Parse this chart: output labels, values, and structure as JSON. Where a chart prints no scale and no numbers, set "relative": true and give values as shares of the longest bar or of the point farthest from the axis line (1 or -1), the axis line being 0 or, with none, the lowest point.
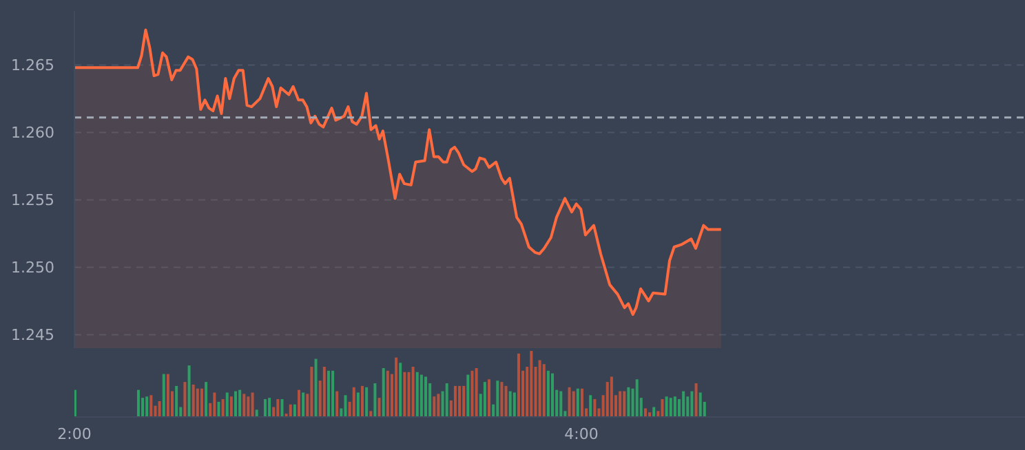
{
  "chart_data": [
    {
      "type": "area",
      "color": "#ff6b3f",
      "tick_labels": "y",
      "grid": "y",
      "xlim": [
        2,
        5.75
      ],
      "ylim": [
        1.244,
        1.269
      ],
      "yticks": [
        {
          "value": 1.245,
          "label": "1.245"
        },
        {
          "value": 1.25,
          "label": "1.250"
        },
        {
          "value": 1.255,
          "label": "1.255"
        },
        {
          "value": 1.26,
          "label": "1.260"
        },
        {
          "value": 1.265,
          "label": "1.265"
        }
      ],
      "ref_lines": [
        {
          "axis": "y",
          "value": 1.2611,
          "color": "#a3abb7",
          "line_style": "dashed"
        }
      ],
      "x": [
        2,
        2.25,
        2.265,
        2.281,
        2.297,
        2.314,
        2.33,
        2.348,
        2.363,
        2.384,
        2.401,
        2.417,
        2.449,
        2.466,
        2.482,
        2.498,
        2.515,
        2.531,
        2.547,
        2.564,
        2.58,
        2.596,
        2.612,
        2.63,
        2.648,
        2.665,
        2.681,
        2.699,
        2.732,
        2.765,
        2.781,
        2.797,
        2.814,
        2.846,
        2.863,
        2.884,
        2.901,
        2.917,
        2.933,
        2.949,
        2.966,
        2.982,
        3.015,
        3.031,
        3.064,
        3.08,
        3.096,
        3.113,
        3.134,
        3.152,
        3.17,
        3.189,
        3.203,
        3.217,
        3.238,
        3.265,
        3.283,
        3.301,
        3.328,
        3.346,
        3.382,
        3.4,
        3.418,
        3.436,
        3.455,
        3.469,
        3.485,
        3.5,
        3.515,
        3.536,
        3.569,
        3.583,
        3.599,
        3.618,
        3.636,
        3.663,
        3.685,
        3.699,
        3.717,
        3.745,
        3.763,
        3.793,
        3.817,
        3.835,
        3.853,
        3.88,
        3.902,
        3.935,
        3.962,
        3.98,
        3.998,
        4.016,
        4.049,
        4.076,
        4.112,
        4.143,
        4.17,
        4.185,
        4.203,
        4.216,
        4.234,
        4.265,
        4.283,
        4.33,
        4.348,
        4.366,
        4.397,
        4.433,
        4.451,
        4.482,
        4.5,
        4.551
      ],
      "values": [
        1.2648,
        1.2648,
        1.2657,
        1.2676,
        1.2663,
        1.2642,
        1.2643,
        1.2659,
        1.2656,
        1.2639,
        1.2646,
        1.2646,
        1.2656,
        1.2654,
        1.2647,
        1.2617,
        1.2624,
        1.2618,
        1.2616,
        1.2627,
        1.2614,
        1.264,
        1.2625,
        1.264,
        1.2646,
        1.2646,
        1.262,
        1.2619,
        1.2625,
        1.264,
        1.2634,
        1.2619,
        1.2633,
        1.2628,
        1.2634,
        1.2624,
        1.2624,
        1.2619,
        1.2607,
        1.2612,
        1.2606,
        1.2604,
        1.2618,
        1.2609,
        1.2612,
        1.2619,
        1.2608,
        1.2606,
        1.2612,
        1.2629,
        1.2602,
        1.2605,
        1.2595,
        1.2601,
        1.258,
        1.2551,
        1.2569,
        1.2562,
        1.2561,
        1.2578,
        1.2579,
        1.2602,
        1.2582,
        1.2582,
        1.2578,
        1.2578,
        1.2587,
        1.2589,
        1.2585,
        1.2576,
        1.2571,
        1.2573,
        1.2581,
        1.258,
        1.2574,
        1.2578,
        1.2566,
        1.2562,
        1.2566,
        1.2537,
        1.2532,
        1.2515,
        1.2511,
        1.251,
        1.2514,
        1.2522,
        1.2537,
        1.2551,
        1.2541,
        1.2547,
        1.2543,
        1.2524,
        1.2531,
        1.251,
        1.2487,
        1.248,
        1.247,
        1.2473,
        1.2465,
        1.247,
        1.2484,
        1.2475,
        1.2481,
        1.248,
        1.2505,
        1.2515,
        1.2517,
        1.2521,
        1.2514,
        1.2531,
        1.2528,
        1.2528
      ]
    },
    {
      "type": "bar",
      "relative": true,
      "tick_labels": "x",
      "xlim": [
        2,
        5.75
      ],
      "xticks": [
        {
          "value": 2,
          "label": "2:00"
        },
        {
          "value": 4,
          "label": "4:00"
        }
      ],
      "x": [
        2,
        2.25,
        2.2667,
        2.2833,
        2.3,
        2.3167,
        2.3333,
        2.35,
        2.3667,
        2.3833,
        2.4,
        2.4167,
        2.4333,
        2.45,
        2.4667,
        2.4833,
        2.5,
        2.5167,
        2.5333,
        2.55,
        2.5667,
        2.5833,
        2.6,
        2.6167,
        2.6333,
        2.65,
        2.6667,
        2.6833,
        2.7,
        2.7167,
        2.75,
        2.7667,
        2.7833,
        2.8,
        2.8167,
        2.8333,
        2.85,
        2.8667,
        2.8833,
        2.9,
        2.9167,
        2.9333,
        2.95,
        2.9667,
        2.9833,
        3,
        3.0167,
        3.0333,
        3.05,
        3.0667,
        3.0833,
        3.1,
        3.1167,
        3.1333,
        3.15,
        3.1667,
        3.1833,
        3.2,
        3.2167,
        3.2333,
        3.25,
        3.2667,
        3.2833,
        3.3,
        3.3167,
        3.3333,
        3.35,
        3.3667,
        3.3833,
        3.4,
        3.4167,
        3.4333,
        3.45,
        3.4667,
        3.4833,
        3.5,
        3.5167,
        3.5333,
        3.55,
        3.5667,
        3.5833,
        3.6,
        3.6167,
        3.6333,
        3.65,
        3.6667,
        3.6833,
        3.7,
        3.7167,
        3.7333,
        3.75,
        3.7667,
        3.7833,
        3.8,
        3.8167,
        3.8333,
        3.85,
        3.8667,
        3.8833,
        3.9,
        3.9167,
        3.9333,
        3.95,
        3.9667,
        3.9833,
        4,
        4.0167,
        4.0333,
        4.05,
        4.0667,
        4.0833,
        4.1,
        4.1167,
        4.1333,
        4.15,
        4.1667,
        4.1833,
        4.2,
        4.2167,
        4.2333,
        4.25,
        4.2667,
        4.2833,
        4.3,
        4.3167,
        4.3333,
        4.35,
        4.3667,
        4.3833,
        4.4,
        4.4167,
        4.4333,
        4.45,
        4.4667,
        4.4833
      ],
      "values": [
        0.41,
        0.41,
        0.29,
        0.31,
        0.33,
        0.17,
        0.24,
        0.65,
        0.65,
        0.39,
        0.47,
        0.15,
        0.53,
        0.78,
        0.49,
        0.43,
        0.43,
        0.53,
        0.21,
        0.37,
        0.23,
        0.27,
        0.37,
        0.31,
        0.39,
        0.41,
        0.35,
        0.31,
        0.37,
        0.11,
        0.27,
        0.29,
        0.15,
        0.27,
        0.27,
        0.05,
        0.19,
        0.19,
        0.41,
        0.37,
        0.35,
        0.76,
        0.88,
        0.55,
        0.76,
        0.7,
        0.7,
        0.39,
        0.13,
        0.33,
        0.23,
        0.45,
        0.37,
        0.47,
        0.45,
        0.09,
        0.51,
        0.29,
        0.74,
        0.7,
        0.65,
        0.9,
        0.82,
        0.68,
        0.68,
        0.76,
        0.68,
        0.64,
        0.61,
        0.51,
        0.31,
        0.35,
        0.39,
        0.51,
        0.25,
        0.47,
        0.47,
        0.47,
        0.64,
        0.7,
        0.74,
        0.35,
        0.53,
        0.57,
        0.19,
        0.55,
        0.53,
        0.47,
        0.39,
        0.37,
        0.96,
        0.7,
        0.76,
        1,
        0.76,
        0.86,
        0.8,
        0.7,
        0.66,
        0.41,
        0.39,
        0.09,
        0.45,
        0.39,
        0.43,
        0.43,
        0.13,
        0.33,
        0.27,
        0.13,
        0.33,
        0.53,
        0.61,
        0.33,
        0.39,
        0.39,
        0.45,
        0.43,
        0.57,
        0.29,
        0.13,
        0.07,
        0.15,
        0.09,
        0.27,
        0.31,
        0.29,
        0.31,
        0.27,
        0.39,
        0.31,
        0.39,
        0.51,
        0.37,
        0.23
      ],
      "colors": [
        "#2e9e64",
        "#2e9e64",
        "#2e9e64",
        "#2e9e64",
        "#b5523e",
        "#b5523e",
        "#b5523e",
        "#2e9e64",
        "#b5523e",
        "#b5523e",
        "#2e9e64",
        "#2e9e64",
        "#b5523e",
        "#2e9e64",
        "#b5523e",
        "#b5523e",
        "#b5523e",
        "#2e9e64",
        "#b5523e",
        "#b5523e",
        "#2e9e64",
        "#b5523e",
        "#2e9e64",
        "#b5523e",
        "#2e9e64",
        "#2e9e64",
        "#b5523e",
        "#b5523e",
        "#b5523e",
        "#2e9e64",
        "#2e9e64",
        "#2e9e64",
        "#b5523e",
        "#b5523e",
        "#2e9e64",
        "#b5523e",
        "#b5523e",
        "#2e9e64",
        "#b5523e",
        "#2e9e64",
        "#b5523e",
        "#b5523e",
        "#2e9e64",
        "#b5523e",
        "#b5523e",
        "#2e9e64",
        "#2e9e64",
        "#b5523e",
        "#2e9e64",
        "#2e9e64",
        "#b5523e",
        "#b5523e",
        "#2e9e64",
        "#b5523e",
        "#2e9e64",
        "#b5523e",
        "#2e9e64",
        "#b5523e",
        "#2e9e64",
        "#b5523e",
        "#b5523e",
        "#b5523e",
        "#2e9e64",
        "#b5523e",
        "#b5523e",
        "#b5523e",
        "#2e9e64",
        "#2e9e64",
        "#2e9e64",
        "#2e9e64",
        "#b5523e",
        "#b5523e",
        "#2e9e64",
        "#2e9e64",
        "#b5523e",
        "#b5523e",
        "#b5523e",
        "#b5523e",
        "#2e9e64",
        "#b5523e",
        "#b5523e",
        "#2e9e64",
        "#2e9e64",
        "#b5523e",
        "#2e9e64",
        "#2e9e64",
        "#b5523e",
        "#b5523e",
        "#2e9e64",
        "#2e9e64",
        "#b5523e",
        "#b5523e",
        "#b5523e",
        "#b5523e",
        "#b5523e",
        "#b5523e",
        "#b5523e",
        "#2e9e64",
        "#2e9e64",
        "#2e9e64",
        "#2e9e64",
        "#2e9e64",
        "#b5523e",
        "#b5523e",
        "#2e9e64",
        "#b5523e",
        "#b5523e",
        "#2e9e64",
        "#b5523e",
        "#b5523e",
        "#b5523e",
        "#b5523e",
        "#b5523e",
        "#b5523e",
        "#b5523e",
        "#b5523e",
        "#2e9e64",
        "#2e9e64",
        "#2e9e64",
        "#2e9e64",
        "#b5523e",
        "#b5523e",
        "#2e9e64",
        "#b5523e",
        "#b5523e",
        "#2e9e64",
        "#2e9e64",
        "#2e9e64",
        "#2e9e64",
        "#2e9e64",
        "#2e9e64",
        "#2e9e64",
        "#b5523e",
        "#2e9e64",
        "#2e9e64"
      ]
    }
  ]
}
